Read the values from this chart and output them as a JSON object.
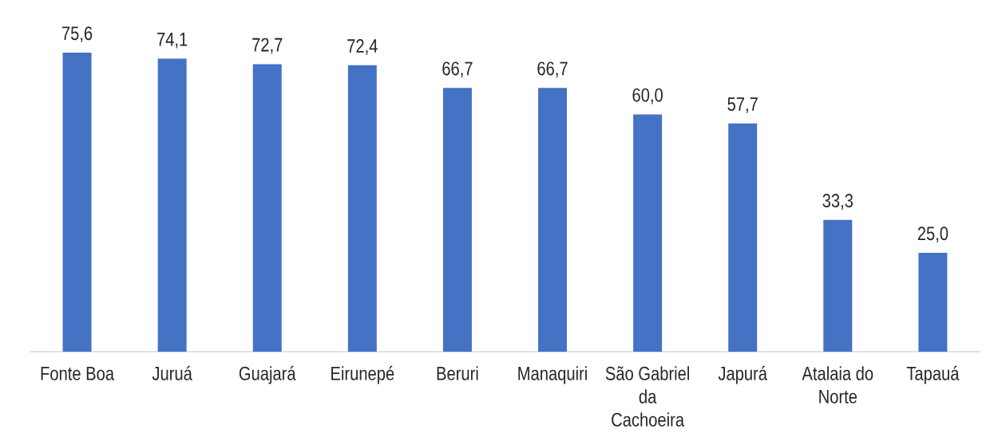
{
  "chart_data": {
    "type": "bar",
    "categories": [
      "Fonte Boa",
      "Juruá",
      "Guajará",
      "Eirunepé",
      "Beruri",
      "Manaquiri",
      "São Gabriel da Cachoeira",
      "Japurá",
      "Atalaia do Norte",
      "Tapauá"
    ],
    "values": [
      75.6,
      74.1,
      72.7,
      72.4,
      66.7,
      66.7,
      60.0,
      57.7,
      33.3,
      25.0
    ],
    "value_labels": [
      "75,6",
      "74,1",
      "72,7",
      "72,4",
      "66,7",
      "66,7",
      "60,0",
      "57,7",
      "33,3",
      "25,0"
    ],
    "color": "#4472c4"
  }
}
